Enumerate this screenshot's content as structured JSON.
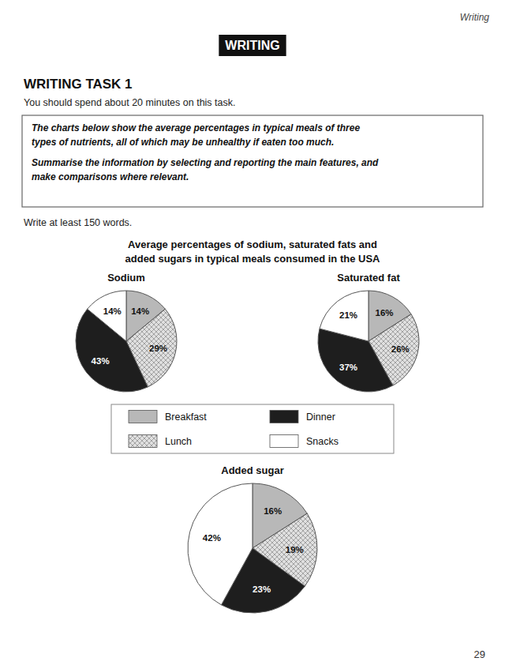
{
  "page": {
    "header": "Writing",
    "section_title": "WRITING",
    "task_title": "WRITING TASK 1",
    "instruction": "You should spend about 20 minutes on this task.",
    "description": [
      "The charts below show the average percentages in typical meals of three",
      "types of nutrients, all of which may be unhealthy if eaten too much.",
      "Summarise the information by selecting and reporting the main features, and",
      "make comparisons where relevant."
    ],
    "word_count_note": "Write at least 150 words.",
    "chart_title": [
      "Average percentages of sodium, saturated fats and",
      "added sugars in typical meals consumed in the USA"
    ],
    "page_number": "29"
  },
  "chart_data": [
    {
      "type": "pie",
      "title": "Sodium",
      "categories": [
        "Breakfast",
        "Lunch",
        "Dinner",
        "Snacks"
      ],
      "values": [
        14,
        29,
        43,
        14
      ],
      "value_labels": [
        "14%",
        "29%",
        "43%",
        "14%"
      ],
      "colors": [
        "#b8b8b8",
        "#e0e0e0",
        "#1e1e1e",
        "#ffffff"
      ],
      "data_labels": true,
      "legend": "bottom"
    },
    {
      "type": "pie",
      "title": "Saturated fat",
      "categories": [
        "Breakfast",
        "Lunch",
        "Dinner",
        "Snacks"
      ],
      "values": [
        16,
        26,
        37,
        21
      ],
      "value_labels": [
        "16%",
        "26%",
        "37%",
        "21%"
      ],
      "colors": [
        "#b8b8b8",
        "#e0e0e0",
        "#1e1e1e",
        "#ffffff"
      ],
      "data_labels": true
    },
    {
      "type": "pie",
      "title": "Added sugar",
      "categories": [
        "Breakfast",
        "Lunch",
        "Dinner",
        "Snacks"
      ],
      "values": [
        16,
        19,
        23,
        42
      ],
      "value_labels": [
        "16%",
        "19%",
        "23%",
        "42%"
      ],
      "colors": [
        "#b8b8b8",
        "#e0e0e0",
        "#1e1e1e",
        "#ffffff"
      ],
      "data_labels": true
    }
  ]
}
